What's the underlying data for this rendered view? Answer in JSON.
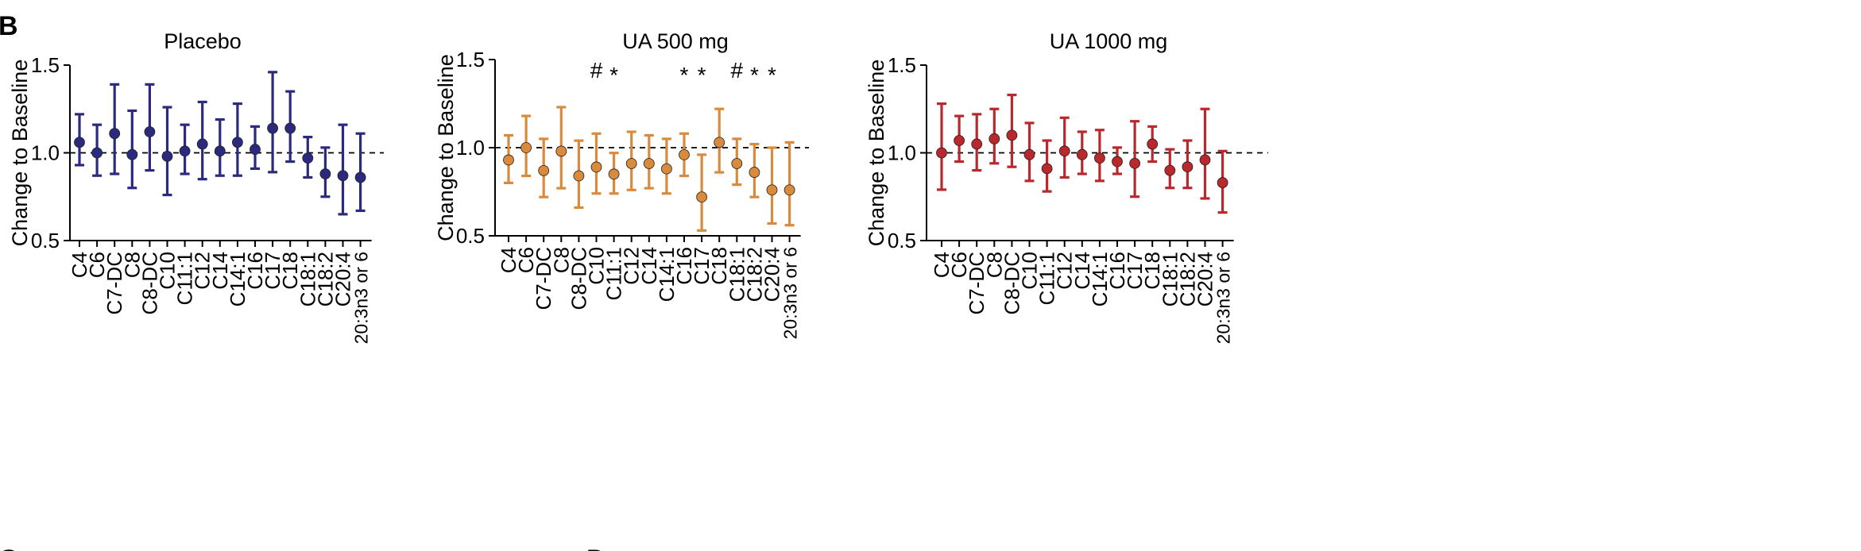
{
  "figure": {
    "panel_letter": "B",
    "bottom_letters": [
      "C",
      "D"
    ]
  },
  "chart_data": [
    {
      "type": "scatter",
      "title": "Placebo",
      "xlabel": "",
      "ylabel": "Change to Baseline",
      "ylim": [
        0.5,
        1.5
      ],
      "yticks": [
        "0.5",
        "1.0",
        "1.5"
      ],
      "reference_line": 1.0,
      "color": "#2c2a7e",
      "categories": [
        "C4",
        "C6",
        "C7-DC",
        "C8",
        "C8-DC",
        "C10",
        "C11:1",
        "C12",
        "C14",
        "C14:1",
        "C16",
        "C17",
        "C18",
        "C18:1",
        "C18:2",
        "C20:4",
        "20:3n3 or 6"
      ],
      "values": [
        1.06,
        1.0,
        1.11,
        0.99,
        1.12,
        0.98,
        1.01,
        1.05,
        1.01,
        1.06,
        1.02,
        1.14,
        1.14,
        0.97,
        0.88,
        0.87,
        0.86
      ],
      "error_low": [
        0.93,
        0.87,
        0.88,
        0.8,
        0.9,
        0.76,
        0.88,
        0.85,
        0.87,
        0.87,
        0.91,
        0.89,
        0.95,
        0.86,
        0.75,
        0.65,
        0.67
      ],
      "error_high": [
        1.22,
        1.16,
        1.39,
        1.24,
        1.39,
        1.26,
        1.16,
        1.29,
        1.19,
        1.28,
        1.15,
        1.46,
        1.35,
        1.09,
        1.03,
        1.16,
        1.11
      ],
      "annotations": []
    },
    {
      "type": "scatter",
      "title": "UA 500 mg",
      "xlabel": "",
      "ylabel": "Change to Baseline",
      "ylim": [
        0.5,
        1.5
      ],
      "yticks": [
        "0.5",
        "1.0",
        "1.5"
      ],
      "reference_line": 1.0,
      "color": "#d98a3a",
      "categories": [
        "C4",
        "C6",
        "C7-DC",
        "C8",
        "C8-DC",
        "C10",
        "C11:1",
        "C12",
        "C14",
        "C14:1",
        "C16",
        "C17",
        "C18",
        "C18:1",
        "C18:2",
        "C20:4",
        "20:3n3 or 6"
      ],
      "values": [
        0.93,
        1.0,
        0.87,
        0.98,
        0.84,
        0.89,
        0.85,
        0.91,
        0.91,
        0.88,
        0.96,
        0.72,
        1.03,
        0.91,
        0.86,
        0.76,
        0.76
      ],
      "error_low": [
        0.8,
        0.84,
        0.72,
        0.77,
        0.66,
        0.74,
        0.74,
        0.76,
        0.77,
        0.74,
        0.84,
        0.53,
        0.86,
        0.79,
        0.72,
        0.57,
        0.56
      ],
      "error_high": [
        1.07,
        1.18,
        1.05,
        1.23,
        1.04,
        1.08,
        0.97,
        1.09,
        1.07,
        1.05,
        1.08,
        0.96,
        1.22,
        1.05,
        1.02,
        1.0,
        1.03
      ],
      "annotations": [
        {
          "category_index": 5,
          "text": "#"
        },
        {
          "category_index": 6,
          "text": "*"
        },
        {
          "category_index": 10,
          "text": "*"
        },
        {
          "category_index": 11,
          "text": "*"
        },
        {
          "category_index": 13,
          "text": "#"
        },
        {
          "category_index": 14,
          "text": "*"
        },
        {
          "category_index": 15,
          "text": "*"
        }
      ]
    },
    {
      "type": "scatter",
      "title": "UA 1000 mg",
      "xlabel": "",
      "ylabel": "Change to Baseline",
      "ylim": [
        0.5,
        1.5
      ],
      "yticks": [
        "0.5",
        "1.0",
        "1.5"
      ],
      "reference_line": 1.0,
      "color": "#b8282c",
      "categories": [
        "C4",
        "C6",
        "C7-DC",
        "C8",
        "C8-DC",
        "C10",
        "C11:1",
        "C12",
        "C14",
        "C14:1",
        "C16",
        "C17",
        "C18",
        "C18:1",
        "C18:2",
        "C20:4",
        "20:3n3 or 6"
      ],
      "values": [
        1.0,
        1.07,
        1.05,
        1.08,
        1.1,
        0.99,
        0.91,
        1.01,
        0.99,
        0.97,
        0.95,
        0.94,
        1.05,
        0.9,
        0.92,
        0.96,
        0.83
      ],
      "error_low": [
        0.79,
        0.95,
        0.9,
        0.94,
        0.92,
        0.84,
        0.78,
        0.86,
        0.88,
        0.84,
        0.88,
        0.75,
        0.95,
        0.8,
        0.8,
        0.74,
        0.66
      ],
      "error_high": [
        1.28,
        1.21,
        1.22,
        1.25,
        1.33,
        1.17,
        1.07,
        1.2,
        1.12,
        1.13,
        1.03,
        1.18,
        1.15,
        1.02,
        1.07,
        1.25,
        1.01
      ],
      "annotations": []
    }
  ]
}
